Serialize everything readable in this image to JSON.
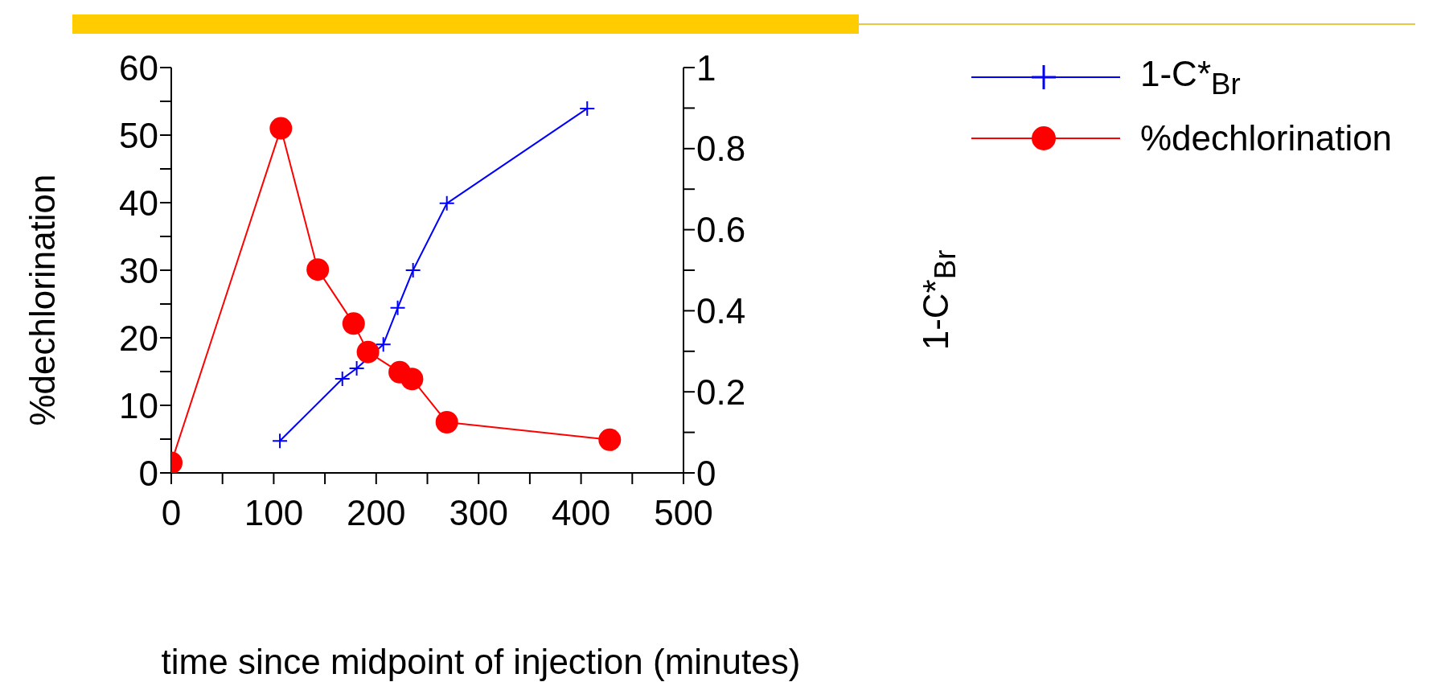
{
  "chart_data": {
    "type": "line",
    "xlabel": "time since midpoint of injection (minutes)",
    "ylabel": "%dechlorination",
    "y2label": "1-C*$_{Br}$",
    "xlim": [
      0,
      500
    ],
    "xticks": [
      0,
      {
        "value": 50,
        "label": null
      },
      100,
      {
        "value": 150,
        "label": null
      },
      200,
      {
        "value": 250,
        "label": null
      },
      300,
      {
        "value": 350,
        "label": null
      },
      400,
      {
        "value": 450,
        "label": null
      },
      500
    ],
    "ylim": [
      0,
      60
    ],
    "yticks": [
      0,
      {
        "value": 5,
        "label": null
      },
      10,
      {
        "value": 15,
        "label": null
      },
      20,
      {
        "value": 25,
        "label": null
      },
      30,
      {
        "value": 35,
        "label": null
      },
      40,
      {
        "value": 45,
        "label": null
      },
      50,
      {
        "value": 55,
        "label": null
      },
      60
    ],
    "y2lim": [
      0,
      1
    ],
    "y2ticks": [
      0,
      {
        "value": 0.1,
        "label": null
      },
      0.2,
      {
        "value": 0.3,
        "label": null
      },
      0.4,
      {
        "value": 0.5,
        "label": null
      },
      0.6,
      {
        "value": 0.7,
        "label": null
      },
      0.8,
      {
        "value": 0.9,
        "label": null
      },
      1
    ],
    "grid": false,
    "legend": "top right",
    "series": [
      {
        "name": "1-C*$_{Br}$",
        "color": "#0000ff",
        "axis": "y2",
        "marker": "cross",
        "x": [
          106,
          167,
          181,
          207,
          221,
          236,
          269,
          406
        ],
        "values": [
          0.079,
          0.232,
          0.258,
          0.317,
          0.407,
          0.5,
          0.665,
          0.899
        ]
      },
      {
        "name": "%dechlorination",
        "color": "#ff0000",
        "axis": "y",
        "marker": "circle",
        "x": [
          0,
          107,
          143,
          178,
          192,
          223,
          235,
          269,
          428
        ],
        "values": [
          1.5,
          51,
          30.1,
          22.1,
          17.9,
          14.9,
          13.9,
          7.5,
          4.9
        ]
      }
    ]
  }
}
